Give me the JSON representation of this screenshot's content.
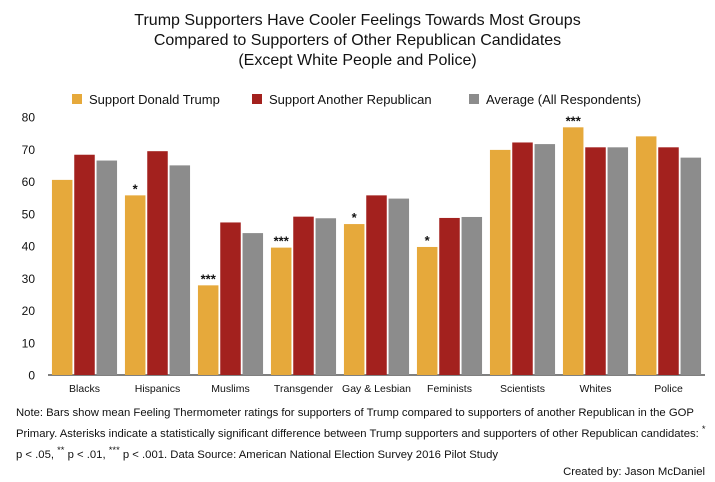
{
  "chart_data": {
    "type": "bar",
    "title_lines": [
      "Trump Supporters Have Cooler Feelings Towards Most Groups",
      "Compared to Supporters of Other Republican Candidates",
      "(Except White People and Police)"
    ],
    "categories": [
      "Blacks",
      "Hispanics",
      "Muslims",
      "Transgender",
      "Gay & Lesbian",
      "Feminists",
      "Scientists",
      "Whites",
      "Police"
    ],
    "series": [
      {
        "name": "Support Donald Trump",
        "color": "#E6A93B",
        "values": [
          60.5,
          55.7,
          27.8,
          39.5,
          46.8,
          39.7,
          69.8,
          76.8,
          74.0
        ]
      },
      {
        "name": "Support Another Republican",
        "color": "#A3211E",
        "values": [
          68.3,
          69.4,
          47.3,
          49.1,
          55.7,
          48.7,
          72.1,
          70.6,
          70.6
        ]
      },
      {
        "name": "Average (All Respondents)",
        "color": "#8C8C8C",
        "values": [
          66.5,
          65.0,
          44.0,
          48.6,
          54.7,
          49.0,
          71.6,
          70.6,
          67.4
        ]
      }
    ],
    "significance": [
      "",
      "*",
      "***",
      "***",
      "*",
      "*",
      "",
      "***",
      ""
    ],
    "ylim": [
      0,
      80
    ],
    "yticks": [
      0,
      10,
      20,
      30,
      40,
      50,
      60,
      70,
      80
    ],
    "xlabel": "",
    "ylabel": "",
    "grid": false,
    "legend_position": "top"
  },
  "note": {
    "part1": "Note: Bars show mean Feeling Thermometer ratings for supporters of Trump compared to supporters of another Republican in the GOP Primary. Asterisks indicate a statistically significant difference between Trump supporters and supporters of other Republican candidates: ",
    "sig1_marker": "*",
    "sig1_text": " p < .05, ",
    "sig2_marker": "**",
    "sig2_text": " p < .01, ",
    "sig3_marker": "***",
    "sig3_text": " p < .001. Data Source: American National Election Survey 2016 Pilot Study"
  },
  "credit": "Created by: Jason McDaniel"
}
